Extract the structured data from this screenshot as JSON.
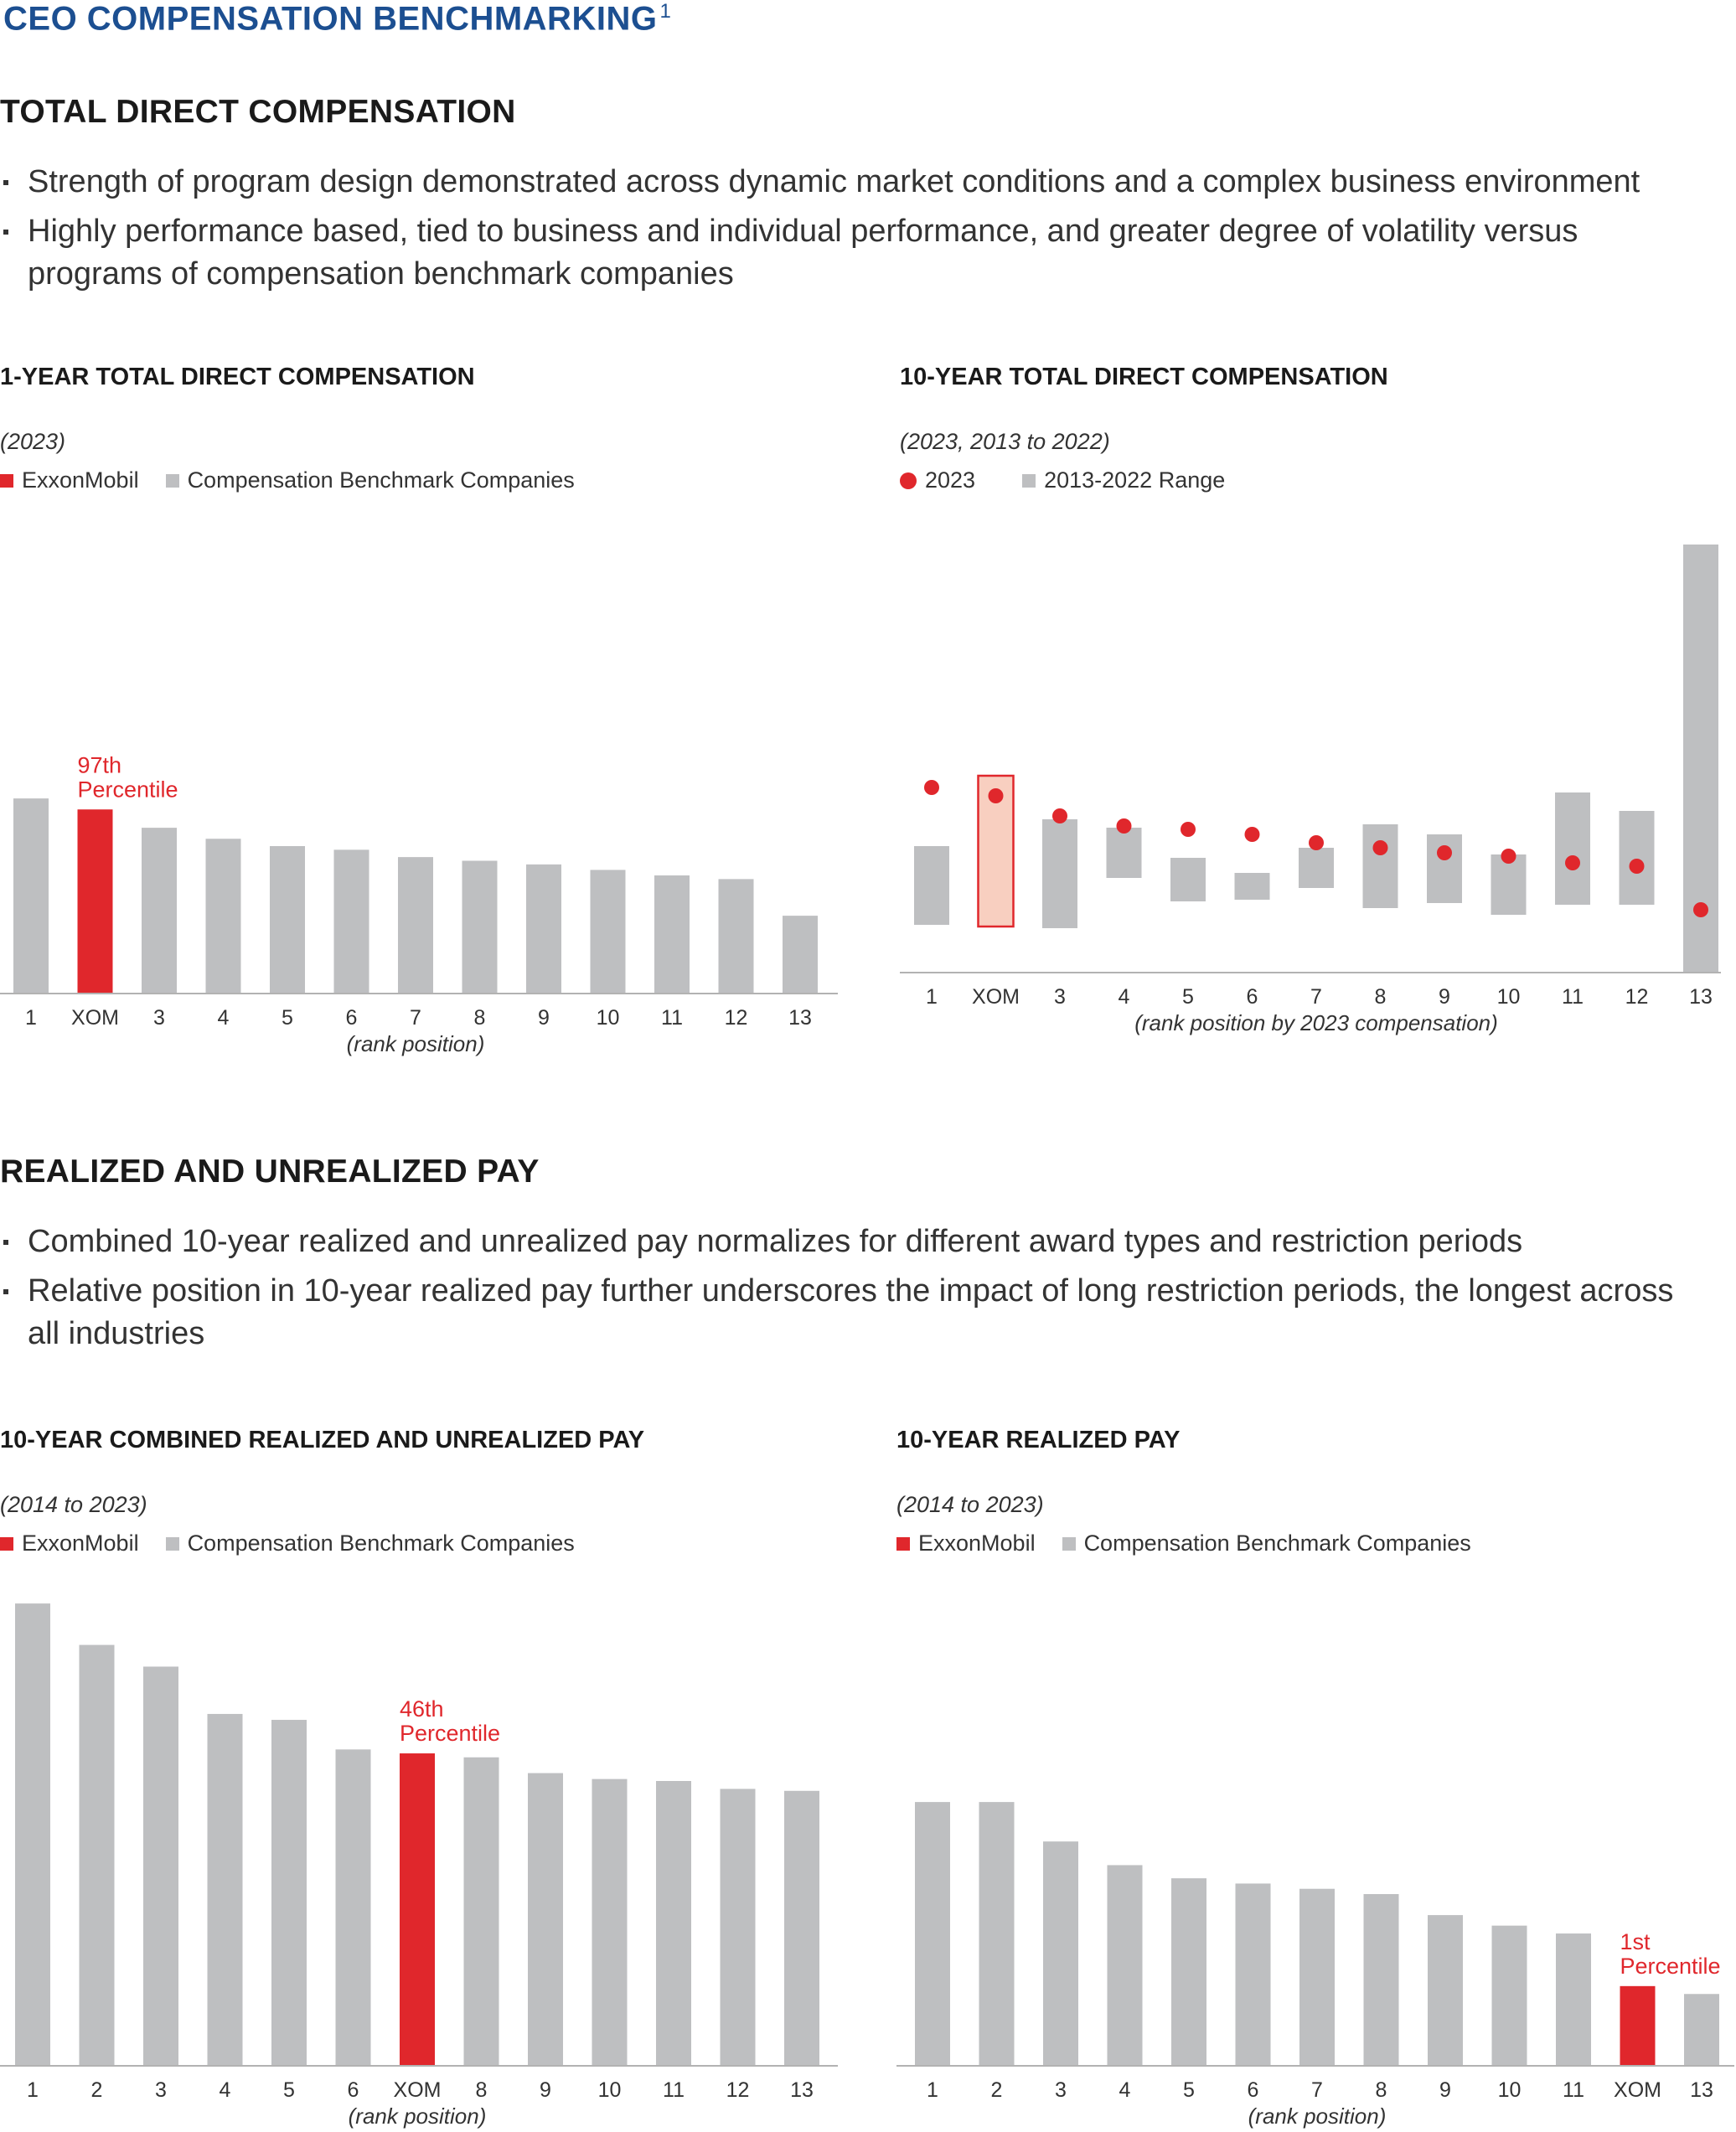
{
  "title": {
    "text": "CEO COMPENSATION BENCHMARKING",
    "footnote": "1"
  },
  "colors": {
    "xom": "#e0272c",
    "peer": "#bebfc1",
    "xom_range_fill": "#f8cfc0",
    "title_blue": "#1c4f91"
  },
  "section1": {
    "title": "TOTAL DIRECT COMPENSATION",
    "bullets": [
      "Strength of program design demonstrated across dynamic market conditions and a complex business environment",
      "Highly performance based, tied to business and individual performance, and greater degree of volatility versus programs of compensation benchmark companies"
    ]
  },
  "section2": {
    "title": "REALIZED AND UNREALIZED PAY",
    "bullets": [
      "Combined 10-year realized and unrealized pay normalizes for different award types and restriction periods",
      "Relative position in 10-year realized pay further underscores the impact of long restriction periods, the longest across all industries"
    ]
  },
  "chart_data": [
    {
      "type": "bar",
      "title": "1-YEAR TOTAL DIRECT COMPENSATION",
      "subtitle": "(2023)",
      "legend": {
        "xom": "ExxonMobil",
        "peer": "Compensation Benchmark Companies"
      },
      "categories": [
        "1",
        "XOM",
        "3",
        "4",
        "5",
        "6",
        "7",
        "8",
        "9",
        "10",
        "11",
        "12",
        "13"
      ],
      "values": [
        106,
        100,
        90,
        84,
        80,
        78,
        74,
        72,
        70,
        67,
        64,
        62,
        42
      ],
      "ylim": [
        0,
        240
      ],
      "highlight_index": 1,
      "annotation": [
        "97th",
        "Percentile"
      ],
      "xlabel": "(rank position)"
    },
    {
      "type": "range",
      "title": "10-YEAR TOTAL DIRECT COMPENSATION",
      "subtitle": "(2023, 2013 to 2022)",
      "legend": {
        "dot": "2023",
        "range": "2013-2022 Range"
      },
      "categories": [
        "1",
        "XOM",
        "3",
        "4",
        "5",
        "6",
        "7",
        "8",
        "9",
        "10",
        "11",
        "12",
        "13"
      ],
      "range_low": [
        28,
        27,
        26,
        56,
        42,
        43,
        50,
        38,
        41,
        34,
        40,
        40,
        0
      ],
      "range_high": [
        75,
        117,
        91,
        86,
        68,
        59,
        74,
        88,
        82,
        70,
        107,
        96,
        255
      ],
      "dots": [
        110,
        105,
        93,
        87,
        85,
        82,
        77,
        74,
        71,
        69,
        65,
        63,
        37
      ],
      "ylim": [
        0,
        255
      ],
      "highlight_index": 1,
      "xlabel": "(rank position by 2023 compensation)"
    },
    {
      "type": "bar",
      "title": "10-YEAR COMBINED REALIZED AND UNREALIZED PAY",
      "subtitle": "(2014 to 2023)",
      "legend": {
        "xom": "ExxonMobil",
        "peer": "Compensation Benchmark Companies"
      },
      "categories": [
        "1",
        "2",
        "3",
        "4",
        "5",
        "6",
        "XOM",
        "8",
        "9",
        "10",
        "11",
        "12",
        "13"
      ],
      "values": [
        234,
        213,
        202,
        178,
        175,
        160,
        158,
        156,
        148,
        145,
        144,
        140,
        139
      ],
      "ylim": [
        0,
        240
      ],
      "highlight_index": 6,
      "annotation": [
        "46th",
        "Percentile"
      ],
      "xlabel": "(rank position)"
    },
    {
      "type": "bar",
      "title": "10-YEAR REALIZED PAY",
      "subtitle": "(2014 to 2023)",
      "legend": {
        "xom": "ExxonMobil",
        "peer": "Compensation Benchmark Companies"
      },
      "categories": [
        "1",
        "2",
        "3",
        "4",
        "5",
        "6",
        "7",
        "8",
        "9",
        "10",
        "11",
        "XOM",
        "13"
      ],
      "values": [
        100,
        100,
        85,
        76,
        71,
        69,
        67,
        65,
        57,
        53,
        50,
        30,
        27
      ],
      "ylim": [
        0,
        180
      ],
      "highlight_index": 11,
      "annotation": [
        "1st",
        "Percentile"
      ],
      "xlabel": "(rank position)"
    }
  ]
}
